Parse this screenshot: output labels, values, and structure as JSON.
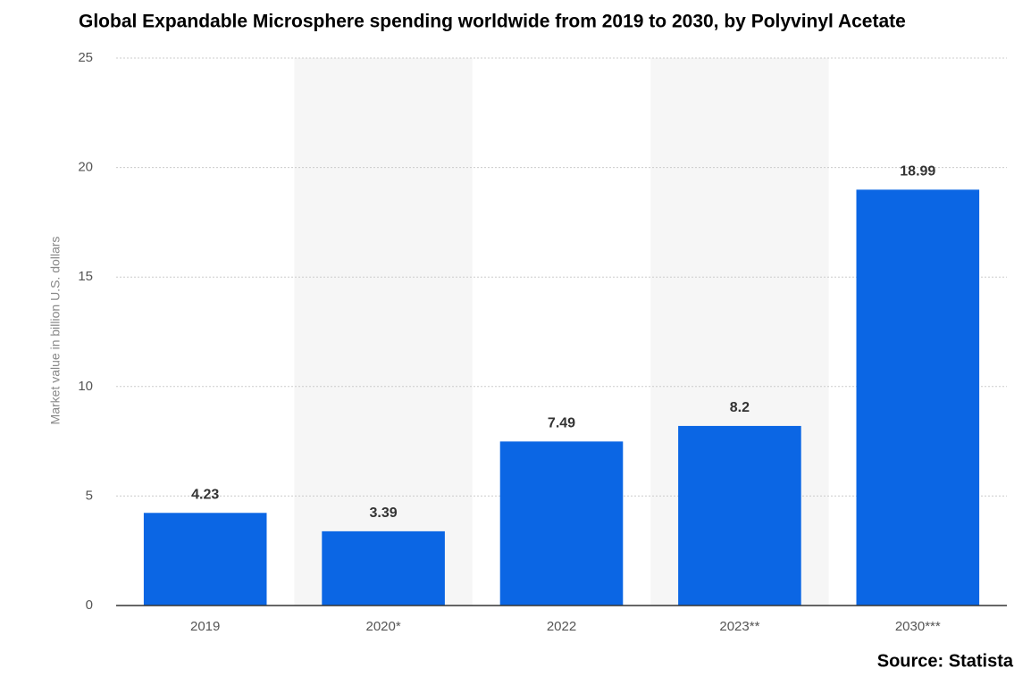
{
  "chart_data": {
    "type": "bar",
    "title": "Global Expandable Microsphere spending worldwide from 2019 to 2030, by Polyvinyl Acetate",
    "y_label": "Market value in billion U.S. dollars",
    "source": "Source: Statista",
    "categories": [
      "2019",
      "2020*",
      "2022",
      "2023**",
      "2030***"
    ],
    "values": [
      4.23,
      3.39,
      7.49,
      8.2,
      18.99
    ],
    "color": "#0b66e4",
    "ylim": [
      0,
      25
    ],
    "yticks": [
      0,
      5,
      10,
      15,
      20,
      25
    ],
    "grid": true,
    "alternate_shading": true
  }
}
